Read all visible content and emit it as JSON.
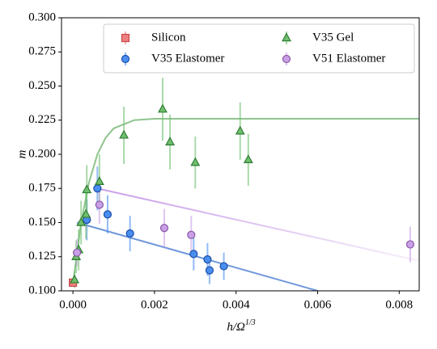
{
  "chart_data": {
    "type": "scatter",
    "xlabel": {
      "base": "h/Ω",
      "sup": "1/3"
    },
    "ylabel": "m",
    "xlim": [
      -0.00028,
      0.00849
    ],
    "ylim": [
      0.1,
      0.3
    ],
    "xticks": [
      {
        "value": 0,
        "label": "0.000"
      },
      {
        "value": 0.002,
        "label": "0.002"
      },
      {
        "value": 0.004,
        "label": "0.004"
      },
      {
        "value": 0.006,
        "label": "0.006"
      },
      {
        "value": 0.008,
        "label": "0.008"
      }
    ],
    "yticks": [
      {
        "value": 0.1,
        "label": "0.100"
      },
      {
        "value": 0.125,
        "label": "0.125"
      },
      {
        "value": 0.15,
        "label": "0.150"
      },
      {
        "value": 0.175,
        "label": "0.175"
      },
      {
        "value": 0.2,
        "label": "0.200"
      },
      {
        "value": 0.225,
        "label": "0.225"
      },
      {
        "value": 0.25,
        "label": "0.250"
      },
      {
        "value": 0.275,
        "label": "0.275"
      },
      {
        "value": 0.3,
        "label": "0.300"
      }
    ],
    "legend": "upper center",
    "fit_lines": [
      {
        "color": "#8fc48f",
        "x": [
          0,
          0.0002,
          0.0004,
          0.0006,
          0.0008,
          0.001,
          0.0015,
          0.002,
          0.00849
        ],
        "values": [
          0.105,
          0.15,
          0.18,
          0.2,
          0.212,
          0.219,
          0.225,
          0.226,
          0.226
        ]
      },
      {
        "color": "#6f96dc",
        "x": [
          0.0001,
          0.006
        ],
        "values": [
          0.15,
          0.1
        ]
      },
      {
        "color": "#c79be8",
        "x": [
          0.0006,
          0.00849
        ],
        "values": [
          0.175,
          0.122
        ],
        "fade": true
      }
    ],
    "series": [
      {
        "name": "Silicon",
        "marker": "square",
        "color": "#ef7f7f",
        "edge": "#c84848",
        "x": [
          0
        ],
        "values": [
          0.106
        ],
        "errors": [
          0.003
        ]
      },
      {
        "name": "V35 Elastomer",
        "marker": "circle",
        "color": "#4a8ef0",
        "edge": "#1c4ea6",
        "x": [
          0.00034,
          0.0006,
          0.00085,
          0.0014,
          0.00296,
          0.0033,
          0.00335,
          0.0037
        ],
        "values": [
          0.152,
          0.175,
          0.156,
          0.142,
          0.127,
          0.123,
          0.115,
          0.118
        ],
        "errors": [
          0.015,
          0.016,
          0.014,
          0.013,
          0.012,
          0.012,
          0.01,
          0.01
        ]
      },
      {
        "name": "V35 Gel",
        "marker": "triangle",
        "color": "#6fbf6f",
        "edge": "#2e7d32",
        "x": [
          4e-05,
          8e-05,
          0.00014,
          0.0002,
          0.00032,
          0.00034,
          0.00065,
          0.00125,
          0.0022,
          0.00238,
          0.003,
          0.0041,
          0.0043
        ],
        "values": [
          0.108,
          0.125,
          0.13,
          0.15,
          0.156,
          0.174,
          0.18,
          0.214,
          0.233,
          0.209,
          0.194,
          0.217,
          0.196
        ],
        "errors": [
          0.006,
          0.012,
          0.015,
          0.016,
          0.018,
          0.018,
          0.02,
          0.021,
          0.023,
          0.02,
          0.019,
          0.021,
          0.019
        ]
      },
      {
        "name": "V51 Elastomer",
        "marker": "circle",
        "color": "#c9a0e6",
        "edge": "#8a58a8",
        "x": [
          0.0001,
          0.00065,
          0.00224,
          0.0029,
          0.00827
        ],
        "values": [
          0.128,
          0.163,
          0.146,
          0.141,
          0.134
        ],
        "errors": [
          0.01,
          0.014,
          0.014,
          0.014,
          0.013
        ]
      }
    ]
  }
}
